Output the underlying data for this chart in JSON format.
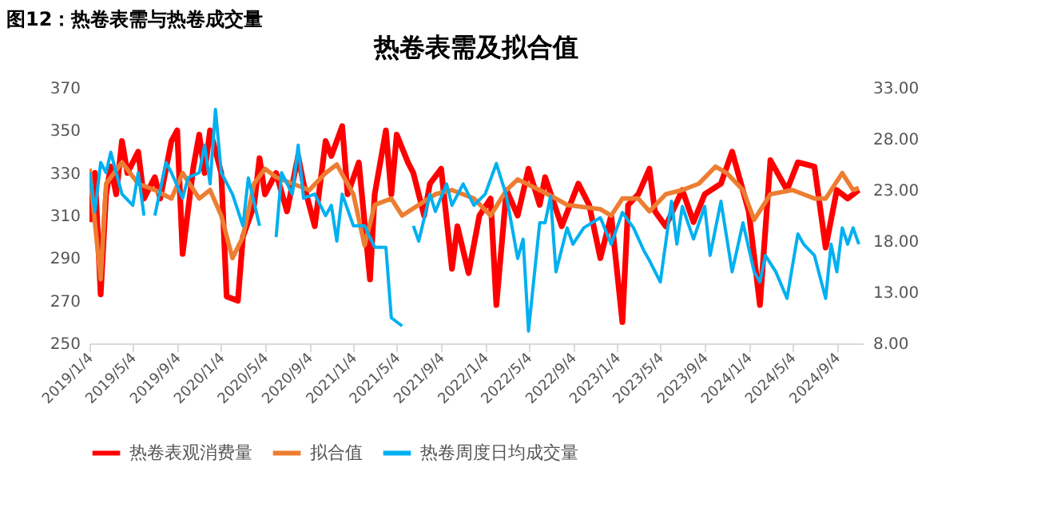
{
  "chart_data": {
    "type": "line",
    "title": "热卷表需及拟合值",
    "annotations": [
      "图12：热卷表需与热卷成交量"
    ],
    "xlim": [
      "2019-01-04",
      "2024-11-15"
    ],
    "xticks": [
      {
        "value": "2019-01-04",
        "label": "2019/1/4"
      },
      {
        "value": "2019-05-04",
        "label": "2019/5/4"
      },
      {
        "value": "2019-09-04",
        "label": "2019/9/4"
      },
      {
        "value": "2020-01-04",
        "label": "2020/1/4"
      },
      {
        "value": "2020-05-04",
        "label": "2020/5/4"
      },
      {
        "value": "2020-09-04",
        "label": "2020/9/4"
      },
      {
        "value": "2021-01-04",
        "label": "2021/1/4"
      },
      {
        "value": "2021-05-04",
        "label": "2021/5/4"
      },
      {
        "value": "2021-09-04",
        "label": "2021/9/4"
      },
      {
        "value": "2022-01-04",
        "label": "2022/1/4"
      },
      {
        "value": "2022-05-04",
        "label": "2022/5/4"
      },
      {
        "value": "2022-09-04",
        "label": "2022/9/4"
      },
      {
        "value": "2023-01-04",
        "label": "2023/1/4"
      },
      {
        "value": "2023-05-04",
        "label": "2023/5/4"
      },
      {
        "value": "2023-09-04",
        "label": "2023/9/4"
      },
      {
        "value": "2024-01-04",
        "label": "2024/1/4"
      },
      {
        "value": "2024-05-04",
        "label": "2024/5/4"
      },
      {
        "value": "2024-09-04",
        "label": "2024/9/4"
      }
    ],
    "ylim": [
      250,
      370
    ],
    "yticks": [
      250,
      270,
      290,
      310,
      330,
      350,
      370
    ],
    "y2lim": [
      8,
      33
    ],
    "y2ticks": [
      {
        "value": 8,
        "label": "8.00"
      },
      {
        "value": 13,
        "label": "13.00"
      },
      {
        "value": 18,
        "label": "18.00"
      },
      {
        "value": 23,
        "label": "23.00"
      },
      {
        "value": 28,
        "label": "28.00"
      },
      {
        "value": 33,
        "label": "33.00"
      }
    ],
    "legend": "bottom",
    "grid": false,
    "series": [
      {
        "name": "热卷表观消费量",
        "color": "#ff0000",
        "x": [
          "2019-01-04",
          "2019-01-19",
          "2019-02-04",
          "2019-02-19",
          "2019-03-04",
          "2019-03-19",
          "2019-04-04",
          "2019-04-19",
          "2019-05-19",
          "2019-06-04",
          "2019-07-04",
          "2019-07-19",
          "2019-08-19",
          "2019-09-04",
          "2019-09-19",
          "2019-10-19",
          "2019-11-04",
          "2019-11-19",
          "2019-12-04",
          "2020-01-04",
          "2020-01-19",
          "2020-02-19",
          "2020-03-04",
          "2020-04-04",
          "2020-04-19",
          "2020-05-04",
          "2020-06-04",
          "2020-07-04",
          "2020-08-04",
          "2020-08-19",
          "2020-09-19",
          "2020-10-19",
          "2020-11-04",
          "2020-12-04",
          "2020-12-19",
          "2021-01-19",
          "2021-02-19",
          "2021-03-04",
          "2021-04-04",
          "2021-04-19",
          "2021-05-04",
          "2021-06-04",
          "2021-06-19",
          "2021-07-19",
          "2021-08-04",
          "2021-09-04",
          "2021-10-04",
          "2021-10-19",
          "2021-11-19",
          "2021-12-19",
          "2022-01-19",
          "2022-02-04",
          "2022-03-04",
          "2022-04-04",
          "2022-05-04",
          "2022-06-04",
          "2022-06-19",
          "2022-08-04",
          "2022-09-19",
          "2022-10-19",
          "2022-11-19",
          "2022-12-19",
          "2023-01-19",
          "2023-02-04",
          "2023-03-04",
          "2023-04-04",
          "2023-04-19",
          "2023-05-19",
          "2023-07-04",
          "2023-08-04",
          "2023-09-04",
          "2023-10-19",
          "2023-11-19",
          "2024-01-04",
          "2024-02-04",
          "2024-03-04",
          "2024-04-19",
          "2024-05-19",
          "2024-07-04",
          "2024-08-04",
          "2024-09-04",
          "2024-10-04",
          "2024-11-04"
        ],
        "values": [
          307,
          330,
          273,
          320,
          333,
          320,
          345,
          330,
          340,
          318,
          328,
          318,
          345,
          350,
          292,
          333,
          348,
          330,
          350,
          330,
          272,
          270,
          300,
          315,
          337,
          320,
          330,
          312,
          338,
          325,
          305,
          345,
          338,
          352,
          320,
          335,
          280,
          320,
          350,
          320,
          348,
          335,
          330,
          310,
          325,
          332,
          285,
          305,
          283,
          310,
          318,
          268,
          322,
          310,
          332,
          315,
          328,
          305,
          325,
          315,
          290,
          310,
          260,
          315,
          320,
          332,
          312,
          305,
          322,
          307,
          320,
          325,
          340,
          312,
          268,
          336,
          322,
          335,
          333,
          295,
          322,
          318,
          322
        ]
      },
      {
        "name": "拟合值",
        "color": "#ed7d31",
        "x": [
          "2019-01-04",
          "2019-02-04",
          "2019-02-19",
          "2019-04-04",
          "2019-05-19",
          "2019-07-04",
          "2019-08-19",
          "2019-09-19",
          "2019-11-04",
          "2019-12-04",
          "2020-01-04",
          "2020-02-04",
          "2020-03-04",
          "2020-04-04",
          "2020-05-04",
          "2020-06-04",
          "2020-07-19",
          "2020-09-04",
          "2020-10-19",
          "2020-11-19",
          "2021-01-04",
          "2021-02-04",
          "2021-03-04",
          "2021-04-19",
          "2021-05-19",
          "2021-07-04",
          "2021-08-19",
          "2021-10-04",
          "2021-12-04",
          "2022-01-19",
          "2022-03-04",
          "2022-04-04",
          "2022-06-04",
          "2022-07-19",
          "2022-08-19",
          "2022-11-19",
          "2022-12-19",
          "2023-01-19",
          "2023-03-04",
          "2023-04-04",
          "2023-05-19",
          "2023-07-04",
          "2023-08-19",
          "2023-10-04",
          "2023-11-04",
          "2023-12-19",
          "2024-01-19",
          "2024-03-04",
          "2024-05-04",
          "2024-07-04",
          "2024-08-04",
          "2024-09-19",
          "2024-10-19",
          "2024-11-04"
        ],
        "values": [
          332,
          280,
          325,
          335,
          325,
          322,
          318,
          330,
          318,
          322,
          310,
          290,
          300,
          325,
          332,
          328,
          325,
          322,
          330,
          334,
          320,
          296,
          315,
          318,
          310,
          315,
          320,
          322,
          318,
          310,
          322,
          327,
          322,
          318,
          315,
          313,
          310,
          318,
          318,
          312,
          320,
          322,
          325,
          333,
          330,
          322,
          308,
          320,
          322,
          318,
          318,
          330,
          322,
          323
        ]
      },
      {
        "name": "热卷周度日均成交量",
        "color": "#00b0f0",
        "axis": "y2",
        "x": [
          "2019-01-04",
          "2019-01-19",
          "2019-02-04",
          "2019-02-19",
          "2019-03-04",
          "2019-04-04",
          "2019-05-04",
          "2019-05-19",
          "2019-06-04",
          "2019-06-19",
          "2019-07-04",
          "2019-08-04",
          "2019-08-19",
          "2019-09-19",
          "2019-10-04",
          "2019-11-04",
          "2019-11-19",
          "2019-12-04",
          "2019-12-19",
          "2020-01-04",
          "2020-02-04",
          "2020-03-04",
          "2020-03-19",
          "2020-04-19",
          "2020-05-04",
          "2020-06-04",
          "2020-06-19",
          "2020-07-19",
          "2020-08-04",
          "2020-08-19",
          "2020-09-19",
          "2020-10-19",
          "2020-11-04",
          "2020-11-19",
          "2020-12-04",
          "2021-01-04",
          "2021-02-04",
          "2021-03-04",
          "2021-04-04",
          "2021-04-19",
          "2021-05-19",
          "2021-06-04",
          "2021-06-19",
          "2021-07-04",
          "2021-08-04",
          "2021-08-19",
          "2021-09-19",
          "2021-10-04",
          "2021-11-04",
          "2021-12-04",
          "2022-01-04",
          "2022-02-04",
          "2022-03-04",
          "2022-04-04",
          "2022-04-19",
          "2022-05-04",
          "2022-06-04",
          "2022-06-19",
          "2022-07-04",
          "2022-07-19",
          "2022-08-19",
          "2022-09-04",
          "2022-10-04",
          "2022-11-19",
          "2022-12-19",
          "2023-01-19",
          "2023-02-19",
          "2023-03-19",
          "2023-04-04",
          "2023-05-04",
          "2023-06-04",
          "2023-06-19",
          "2023-07-04",
          "2023-08-04",
          "2023-09-04",
          "2023-09-19",
          "2023-10-19",
          "2023-11-19",
          "2023-12-19",
          "2024-01-19",
          "2024-02-04",
          "2024-02-19",
          "2024-03-19",
          "2024-04-19",
          "2024-05-19",
          "2024-06-04",
          "2024-07-04",
          "2024-08-04",
          "2024-08-19",
          "2024-09-04",
          "2024-09-19",
          "2024-10-04",
          "2024-10-19",
          "2024-11-04"
        ],
        "values": [
          24.7,
          20.9,
          25.7,
          24.7,
          26.7,
          22.6,
          21.5,
          24.7,
          20.5,
          null,
          20.5,
          25.7,
          24.7,
          22.2,
          24.2,
          24.7,
          27.4,
          23.6,
          30.9,
          24.7,
          22.6,
          19.5,
          24.2,
          19.5,
          null,
          18.4,
          24.7,
          22.6,
          27.4,
          22.2,
          22.6,
          20.5,
          21.5,
          18.0,
          22.6,
          19.5,
          19.5,
          17.4,
          17.4,
          10.5,
          9.7,
          null,
          19.5,
          18.0,
          22.6,
          20.9,
          23.6,
          21.5,
          23.6,
          21.5,
          22.6,
          25.6,
          22.4,
          16.3,
          18.2,
          9.2,
          19.8,
          19.8,
          22.4,
          15.0,
          19.3,
          17.7,
          19.3,
          20.3,
          17.7,
          20.8,
          19.3,
          17.1,
          16.1,
          14.0,
          21.9,
          17.7,
          21.4,
          18.2,
          21.4,
          16.6,
          21.9,
          15.0,
          19.8,
          15.0,
          14.0,
          16.6,
          15.0,
          12.4,
          18.7,
          17.7,
          16.6,
          12.4,
          17.7,
          15.0,
          19.3,
          17.7,
          19.3,
          17.7
        ]
      }
    ]
  }
}
